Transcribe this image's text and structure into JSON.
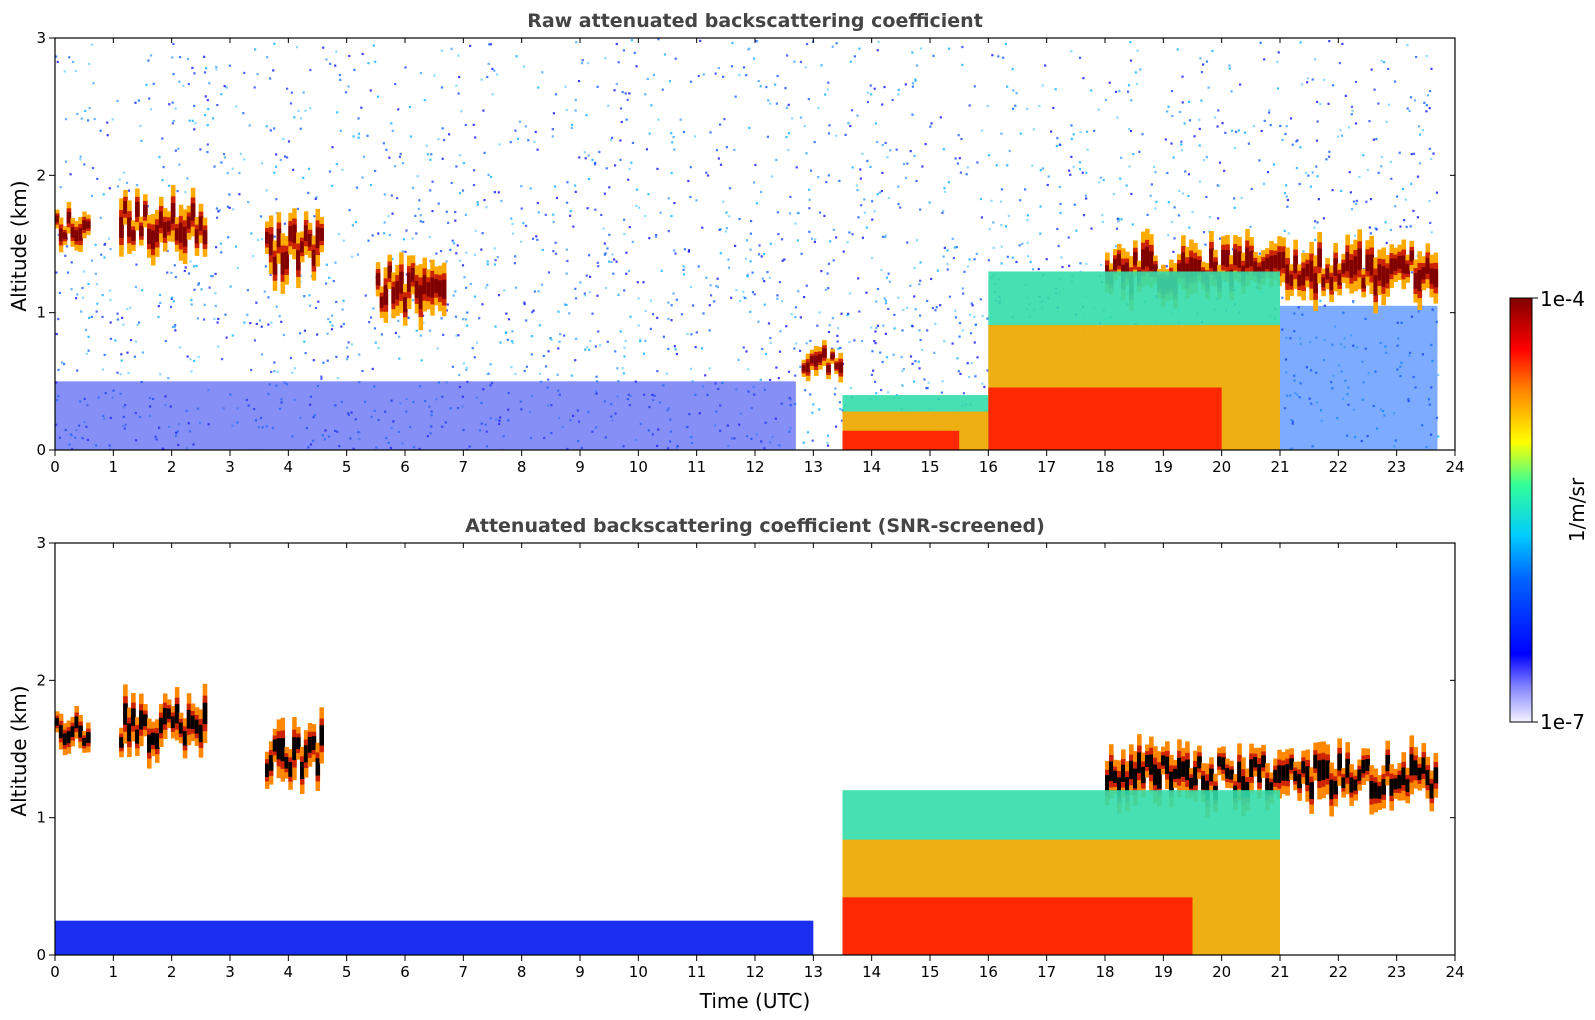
{
  "chart_data": [
    {
      "type": "heatmap",
      "title": "Raw attenuated backscattering coefficient",
      "xlabel": "",
      "ylabel": "Altitude (km)",
      "xlim": [
        0,
        24
      ],
      "ylim": [
        0,
        3
      ],
      "xticks": [
        "0",
        "1",
        "2",
        "3",
        "4",
        "5",
        "6",
        "7",
        "8",
        "9",
        "10",
        "11",
        "12",
        "13",
        "14",
        "15",
        "16",
        "17",
        "18",
        "19",
        "20",
        "21",
        "22",
        "23",
        "24"
      ],
      "yticks": [
        "0",
        "1",
        "2",
        "3"
      ],
      "features": [
        {
          "kind": "cloud",
          "t": [
            0.0,
            0.6
          ],
          "alt": [
            1.5,
            1.75
          ]
        },
        {
          "kind": "cloud",
          "t": [
            1.1,
            2.6
          ],
          "alt": [
            1.45,
            1.85
          ]
        },
        {
          "kind": "cloud",
          "t": [
            3.6,
            4.6
          ],
          "alt": [
            1.25,
            1.7
          ]
        },
        {
          "kind": "cloud",
          "t": [
            5.5,
            6.7
          ],
          "alt": [
            0.95,
            1.4
          ]
        },
        {
          "kind": "cloud",
          "t": [
            12.8,
            13.5
          ],
          "alt": [
            0.55,
            0.75
          ]
        },
        {
          "kind": "cloud",
          "t": [
            18.0,
            23.7
          ],
          "alt": [
            1.1,
            1.5
          ]
        },
        {
          "kind": "boundary_layer",
          "t": [
            13.5,
            16.0
          ],
          "alt": [
            0.0,
            0.4
          ]
        },
        {
          "kind": "boundary_layer",
          "t": [
            16.0,
            21.0
          ],
          "alt": [
            0.0,
            1.3
          ]
        }
      ]
    },
    {
      "type": "heatmap",
      "title": "Attenuated backscattering coefficient (SNR-screened)",
      "xlabel": "Time (UTC)",
      "ylabel": "Altitude (km)",
      "xlim": [
        0,
        24
      ],
      "ylim": [
        0,
        3
      ],
      "xticks": [
        "0",
        "1",
        "2",
        "3",
        "4",
        "5",
        "6",
        "7",
        "8",
        "9",
        "10",
        "11",
        "12",
        "13",
        "14",
        "15",
        "16",
        "17",
        "18",
        "19",
        "20",
        "21",
        "22",
        "23",
        "24"
      ],
      "yticks": [
        "0",
        "1",
        "2",
        "3"
      ],
      "features": [
        {
          "kind": "cloud",
          "t": [
            0.0,
            0.6
          ],
          "alt": [
            1.5,
            1.75
          ]
        },
        {
          "kind": "cloud",
          "t": [
            1.1,
            2.6
          ],
          "alt": [
            1.45,
            1.85
          ]
        },
        {
          "kind": "cloud",
          "t": [
            3.6,
            4.6
          ],
          "alt": [
            1.25,
            1.7
          ]
        },
        {
          "kind": "cloud",
          "t": [
            18.0,
            23.7
          ],
          "alt": [
            1.1,
            1.5
          ]
        },
        {
          "kind": "boundary_layer",
          "t": [
            0.0,
            13.0
          ],
          "alt": [
            0.0,
            0.25
          ]
        },
        {
          "kind": "boundary_layer",
          "t": [
            13.5,
            21.0
          ],
          "alt": [
            0.0,
            1.2
          ]
        }
      ]
    }
  ],
  "colorbar": {
    "label": "1/m/sr",
    "max_label": "1e-4",
    "min_label": "1e-7",
    "colors": [
      "#ffffff",
      "#0000ff",
      "#00ccff",
      "#33ff99",
      "#ffff00",
      "#ff6600",
      "#ff0000",
      "#800000"
    ]
  }
}
